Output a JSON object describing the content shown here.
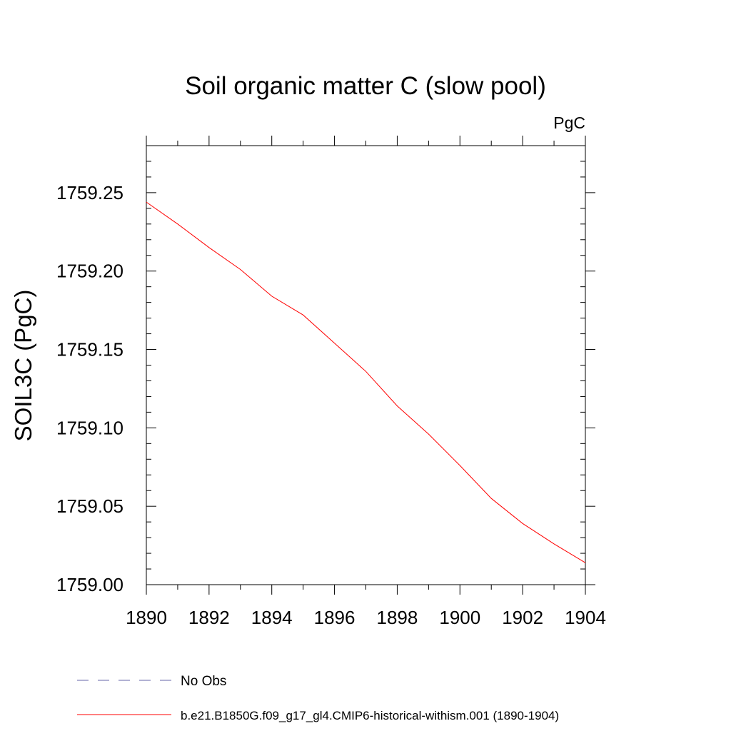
{
  "chart_data": {
    "type": "line",
    "title": "Soil organic matter C (slow pool)",
    "units_label": "PgC",
    "xlabel": "",
    "ylabel": "SOIL3C  (PgC)",
    "xlim": [
      1890,
      1904
    ],
    "ylim": [
      1759.0,
      1759.28
    ],
    "x_ticks": [
      1890,
      1892,
      1894,
      1896,
      1898,
      1900,
      1902,
      1904
    ],
    "x_tick_labels": [
      "1890",
      "1892",
      "1894",
      "1896",
      "1898",
      "1900",
      "1902",
      "1904"
    ],
    "y_ticks": [
      1759.0,
      1759.05,
      1759.1,
      1759.15,
      1759.2,
      1759.25
    ],
    "y_tick_labels": [
      "1759.00",
      "1759.05",
      "1759.10",
      "1759.15",
      "1759.20",
      "1759.25"
    ],
    "x_minor_step": 1,
    "y_minor_step": 0.01,
    "grid": false,
    "legend_position": "bottom",
    "series": [
      {
        "name": "b.e21.B1850G.f09_g17_gl4.CMIP6-historical-withism.001 (1890-1904)",
        "color": "#ff0000",
        "style": "solid",
        "x": [
          1890,
          1891,
          1892,
          1893,
          1894,
          1895,
          1896,
          1897,
          1898,
          1899,
          1900,
          1901,
          1902,
          1903,
          1904
        ],
        "y": [
          1759.244,
          1759.23,
          1759.215,
          1759.201,
          1759.184,
          1759.172,
          1759.154,
          1759.136,
          1759.114,
          1759.096,
          1759.076,
          1759.055,
          1759.039,
          1759.026,
          1759.014
        ]
      }
    ],
    "legend": [
      {
        "label": "No Obs",
        "color": "#6666aa",
        "style": "dashed"
      },
      {
        "label": "b.e21.B1850G.f09_g17_gl4.CMIP6-historical-withism.001 (1890-1904)",
        "color": "#ff0000",
        "style": "solid"
      }
    ]
  }
}
